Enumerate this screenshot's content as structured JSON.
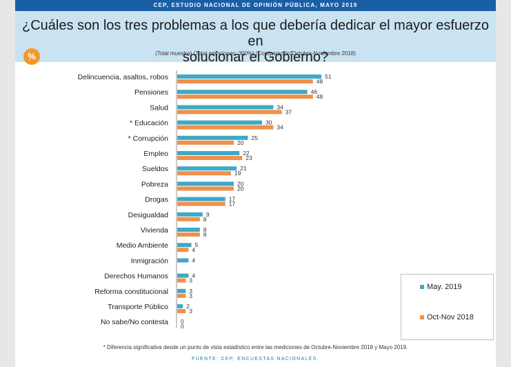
{
  "banner": "CEP, ESTUDIO NACIONAL DE OPINIÓN PÚBLICA, MAYO 2019",
  "title_line1": "¿Cuáles son los tres problemas a los que debería dedicar el mayor esfuerzo en",
  "title_line2": "solucionar el Gobierno?",
  "subtitle": "(Total muestra) (Total menciones: 300%) (Comparación Octubre-Noviembre 2018)",
  "badge": "%",
  "footnote": "* Diferencia significativa desde un punto de vista estadístico entre las mediciones de Octubre-Noviembre 2018 y Mayo 2019.",
  "source": "FUENTE: CEP, ENCUESTAS NACIONALES.",
  "colors": {
    "may2019": "#3fa9c6",
    "oct2018": "#f0914a"
  },
  "chart_data": {
    "type": "bar",
    "orientation": "horizontal",
    "categories": [
      "Delincuencia, asaltos, robos",
      "Pensiones",
      "Salud",
      "* Educación",
      "* Corrupción",
      "Empleo",
      "Sueldos",
      "Pobreza",
      "Drogas",
      "Desigualdad",
      "Vivienda",
      "Medio Ambiente",
      "Inmigración",
      "Derechos Humanos",
      "Reforma constitucional",
      "Transporte Público",
      "No sabe/No contesta"
    ],
    "series": [
      {
        "name": "May. 2019",
        "values": [
          51,
          46,
          34,
          30,
          25,
          22,
          21,
          20,
          17,
          9,
          8,
          5,
          4,
          4,
          3,
          2,
          0
        ]
      },
      {
        "name": "Oct-Nov 2018",
        "values": [
          48,
          48,
          37,
          34,
          20,
          23,
          19,
          20,
          17,
          8,
          8,
          4,
          null,
          3,
          3,
          3,
          0
        ]
      }
    ],
    "legend": "bottom-right"
  }
}
